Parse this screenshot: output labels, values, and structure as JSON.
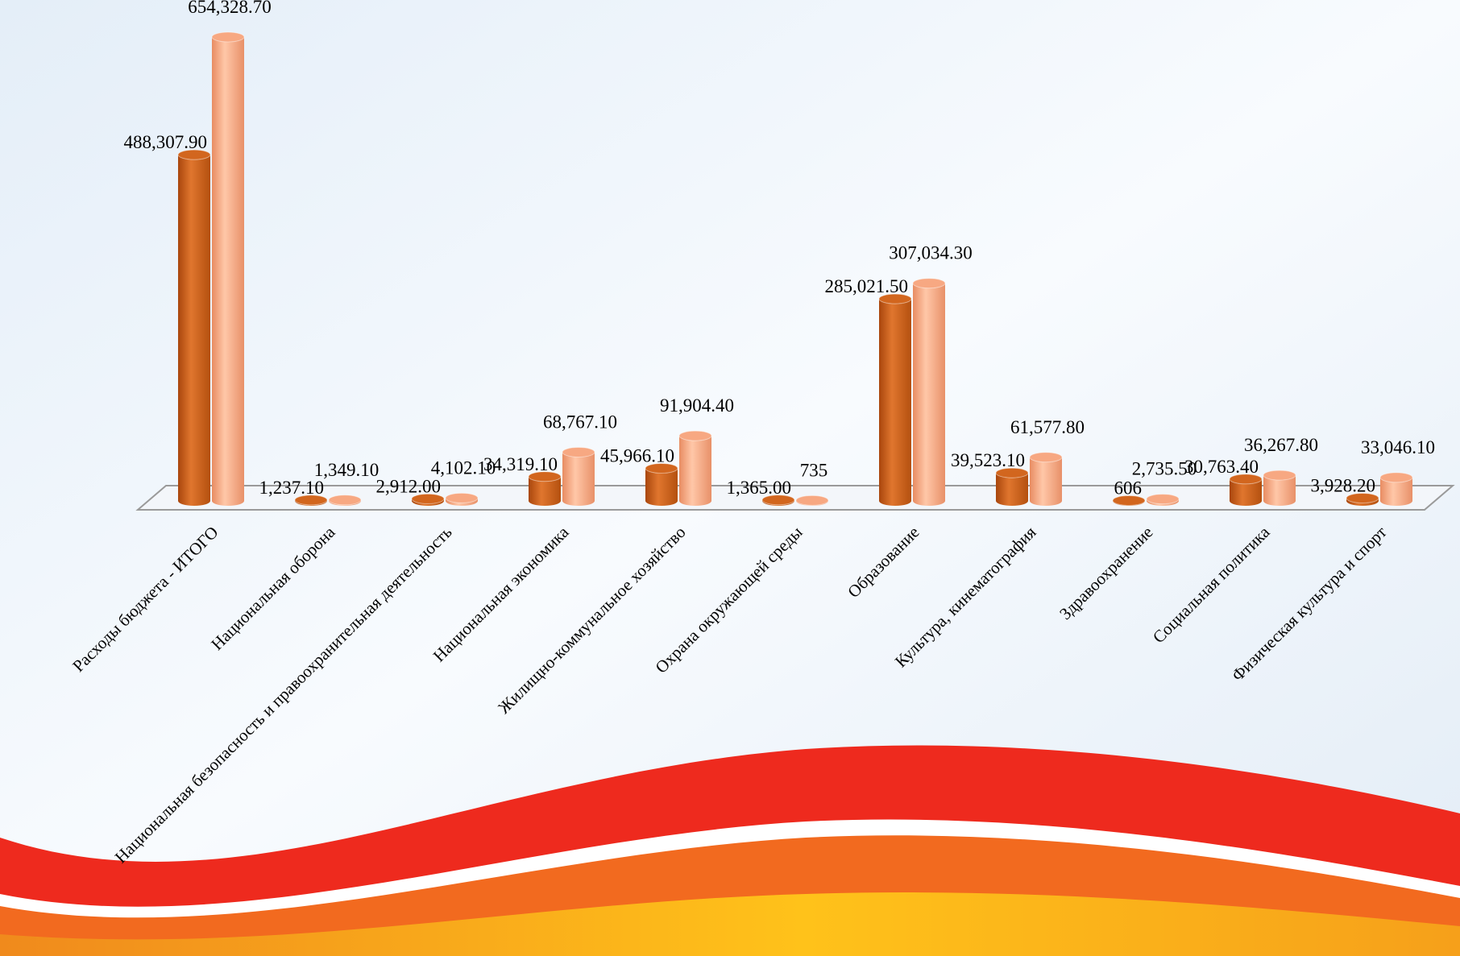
{
  "chart_data": {
    "type": "bar3d",
    "categories": [
      "Расходы бюджета - ИТОГО",
      "Национальная оборона",
      "Национальная безопасность и правоохранительная деятельность",
      "Национальная экономика",
      "Жилищно-коммунальное хозяйство",
      "Охрана окружающей среды",
      "Образование",
      "Культура, кинематография",
      "Здравоохранение",
      "Социальная политика",
      "Физическая культура и спорт"
    ],
    "series": [
      {
        "color": "#d2661e",
        "values": [
          488307.9,
          1237.1,
          2912,
          34319.1,
          45966.1,
          1365,
          285021.5,
          39523.1,
          606,
          30763.4,
          3928.2
        ],
        "value_labels": [
          "488,307.90",
          "1,237.10",
          "2,912.00",
          "34,319.10",
          "45,966.10",
          "1,365.00",
          "285,021.50",
          "39,523.10",
          "606",
          "30,763.40",
          "3,928.20"
        ]
      },
      {
        "color": "#f7a882",
        "values": [
          654328.7,
          1349.1,
          4102.1,
          68767.1,
          91904.4,
          735,
          307034.3,
          61577.8,
          2735.5,
          36267.8,
          33046.1
        ],
        "value_labels": [
          "654,328.70",
          "1,349.10",
          "4,102.10",
          "68,767.10",
          "91,904.40",
          "735",
          "307,034.30",
          "61,577.80",
          "2,735.50",
          "36,267.80",
          "33,046.10"
        ]
      }
    ]
  }
}
